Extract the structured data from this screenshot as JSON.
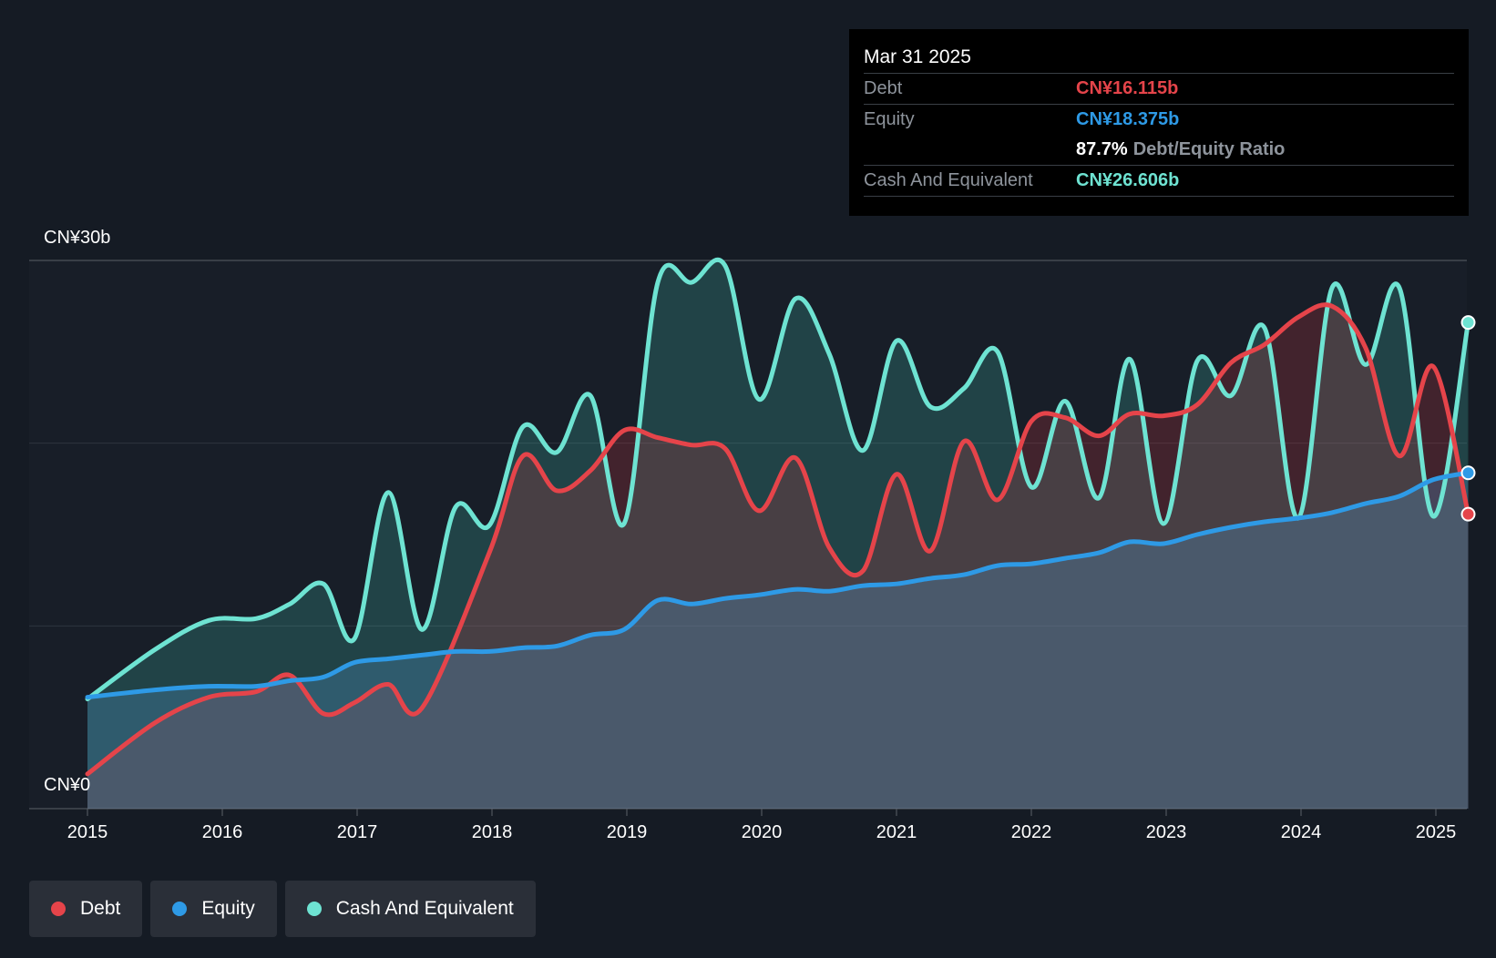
{
  "tooltip": {
    "date": "Mar 31 2025",
    "debt_label": "Debt",
    "debt_value": "CN¥16.115b",
    "equity_label": "Equity",
    "equity_value": "CN¥18.375b",
    "ratio_value": "87.7%",
    "ratio_label": "Debt/Equity Ratio",
    "cash_label": "Cash And Equivalent",
    "cash_value": "CN¥26.606b"
  },
  "axis": {
    "y_top_label": "CN¥30b",
    "y_bottom_label": "CN¥0"
  },
  "legend": {
    "debt": "Debt",
    "equity": "Equity",
    "cash": "Cash And Equivalent"
  },
  "colors": {
    "debt": "#e5444a",
    "equity": "#2e9ae6",
    "cash": "#6ee3d2",
    "background": "#151b24"
  },
  "chart_data": {
    "type": "area",
    "title": "",
    "xlabel": "",
    "ylabel": "",
    "ylim": [
      0,
      30
    ],
    "y_unit": "CN¥ billions",
    "x_ticks": [
      "2015",
      "2016",
      "2017",
      "2018",
      "2019",
      "2020",
      "2021",
      "2022",
      "2023",
      "2024",
      "2025"
    ],
    "series": [
      {
        "name": "Cash And Equivalent",
        "x": [
          2015.0,
          2015.5,
          2015.9,
          2016.25,
          2016.5,
          2016.75,
          2016.98,
          2017.23,
          2017.48,
          2017.73,
          2017.98,
          2018.23,
          2018.48,
          2018.73,
          2018.98,
          2019.23,
          2019.48,
          2019.73,
          2019.98,
          2020.25,
          2020.5,
          2020.75,
          2021.0,
          2021.25,
          2021.5,
          2021.75,
          2022.0,
          2022.25,
          2022.5,
          2022.73,
          2022.98,
          2023.23,
          2023.48,
          2023.73,
          2023.98,
          2024.23,
          2024.48,
          2024.73,
          2024.98,
          2025.24
        ],
        "values": [
          6.0,
          8.7,
          10.3,
          10.4,
          11.2,
          12.3,
          9.3,
          17.3,
          9.8,
          16.5,
          15.5,
          20.9,
          19.5,
          22.6,
          15.6,
          28.8,
          28.8,
          29.7,
          22.4,
          27.9,
          24.9,
          19.6,
          25.6,
          22.0,
          23.0,
          25.0,
          17.6,
          22.3,
          17.0,
          24.6,
          15.6,
          24.5,
          22.6,
          26.3,
          15.9,
          28.5,
          24.3,
          28.5,
          16.0,
          26.606
        ]
      },
      {
        "name": "Debt",
        "x": [
          2015.0,
          2015.5,
          2015.9,
          2016.25,
          2016.5,
          2016.75,
          2016.98,
          2017.23,
          2017.48,
          2017.98,
          2018.23,
          2018.48,
          2018.73,
          2018.98,
          2019.23,
          2019.48,
          2019.73,
          2019.98,
          2020.25,
          2020.5,
          2020.75,
          2021.0,
          2021.25,
          2021.5,
          2021.75,
          2022.0,
          2022.25,
          2022.5,
          2022.73,
          2022.98,
          2023.23,
          2023.48,
          2023.73,
          2023.98,
          2024.23,
          2024.48,
          2024.73,
          2024.98,
          2025.24
        ],
        "values": [
          1.9,
          4.7,
          6.1,
          6.4,
          7.3,
          5.2,
          5.8,
          6.8,
          5.5,
          14.0,
          19.3,
          17.4,
          18.5,
          20.7,
          20.3,
          19.9,
          19.7,
          16.3,
          19.2,
          14.3,
          13.0,
          18.3,
          14.1,
          20.1,
          16.9,
          21.2,
          21.4,
          20.4,
          21.6,
          21.5,
          22.1,
          24.4,
          25.4,
          26.9,
          27.5,
          25.2,
          19.3,
          24.2,
          16.115
        ]
      },
      {
        "name": "Equity",
        "x": [
          2015.0,
          2015.5,
          2015.9,
          2016.25,
          2016.5,
          2016.75,
          2016.98,
          2017.23,
          2017.48,
          2017.73,
          2017.98,
          2018.23,
          2018.48,
          2018.73,
          2018.98,
          2019.23,
          2019.48,
          2019.73,
          2019.98,
          2020.25,
          2020.5,
          2020.75,
          2021.0,
          2021.25,
          2021.5,
          2021.75,
          2022.0,
          2022.25,
          2022.5,
          2022.73,
          2022.98,
          2023.23,
          2023.48,
          2023.73,
          2023.98,
          2024.23,
          2024.48,
          2024.73,
          2024.98,
          2025.24
        ],
        "values": [
          6.1,
          6.5,
          6.7,
          6.7,
          7.0,
          7.2,
          8.0,
          8.2,
          8.4,
          8.6,
          8.6,
          8.8,
          8.9,
          9.5,
          9.8,
          11.4,
          11.2,
          11.5,
          11.7,
          12.0,
          11.9,
          12.2,
          12.3,
          12.6,
          12.8,
          13.3,
          13.4,
          13.7,
          14.0,
          14.6,
          14.5,
          15.0,
          15.4,
          15.7,
          15.9,
          16.2,
          16.7,
          17.1,
          18.0,
          18.375
        ]
      }
    ]
  }
}
